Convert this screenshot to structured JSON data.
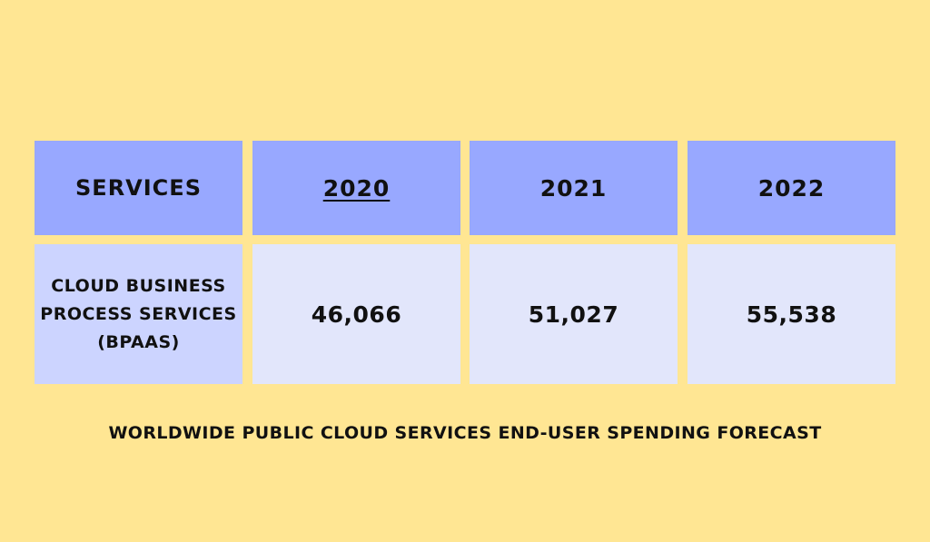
{
  "chart_data": {
    "type": "table",
    "columns": [
      "SERVICES",
      "2020",
      "2021",
      "2022"
    ],
    "rows": [
      {
        "service": "CLOUD BUSINESS PROCESS SERVICES (BPAAS)",
        "values": [
          "46,066",
          "51,027",
          "55,538"
        ]
      }
    ],
    "caption": "WORLDWIDE PUBLIC CLOUD SERVICES END-USER SPENDING FORECAST"
  },
  "colors": {
    "background": "#ffe693",
    "header_fill": "#98a8ff",
    "row_label_fill": "#ccd4ff",
    "value_fill": "#e2e6fb"
  }
}
